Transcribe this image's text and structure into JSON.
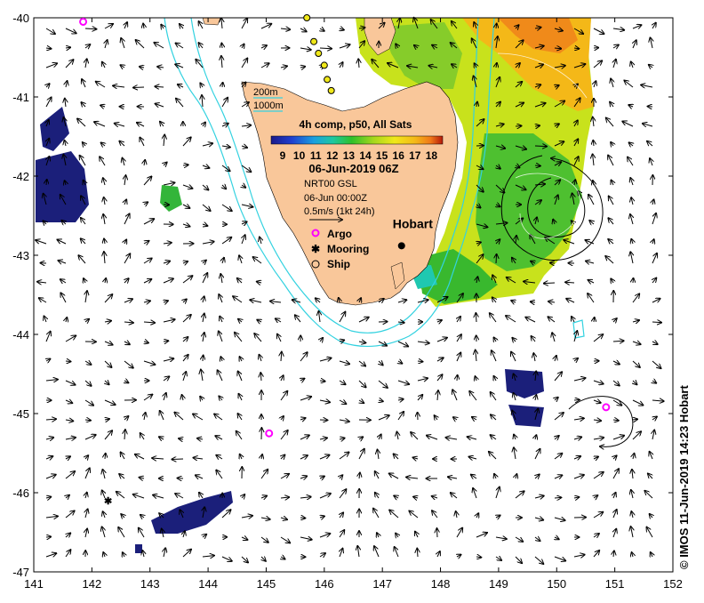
{
  "map": {
    "region": "Tasmania",
    "lon_range": [
      141,
      152
    ],
    "lat_range": [
      -47,
      -40
    ],
    "x_ticks": [
      "141",
      "142",
      "143",
      "144",
      "145",
      "146",
      "147",
      "148",
      "149",
      "150",
      "151",
      "152"
    ],
    "y_ticks": [
      "-40",
      "-41",
      "-42",
      "-43",
      "-44",
      "-45",
      "-46",
      "-47"
    ],
    "colors": {
      "land": "#f9c79a",
      "isobath": "#34d2e0",
      "sst_warm": "#f4a41a",
      "sst_cool": "#1b1f7a",
      "argo": "#ff00ff"
    }
  },
  "legend": {
    "isobath_200": "200m",
    "isobath_1000": "1000m",
    "composite_title": "4h comp, p50, All Sats",
    "colorbar_ticks": [
      "9",
      "10",
      "11",
      "12",
      "13",
      "14",
      "15",
      "16",
      "17",
      "18"
    ],
    "colorbar_colors": [
      "#1a1a8a",
      "#1f3fd0",
      "#1aa0e0",
      "#1ec8a0",
      "#2fc02a",
      "#a8d81c",
      "#f0e81a",
      "#f4b818",
      "#f07818",
      "#b41a0a"
    ],
    "date": "06-Jun-2019 06Z",
    "current_source": "NRT00 GSL",
    "current_time": "06-Jun 00:00Z",
    "vector_scale": "0.5m/s (1kt 24h)",
    "argo_label": "Argo",
    "mooring_label": "Mooring",
    "ship_label": "Ship",
    "city_label": "Hobart"
  },
  "credit": "© IMOS 11-Jun-2019 14:23 Hobart",
  "argo_floats": [
    {
      "lon": 141.85,
      "lat": -40.05
    },
    {
      "lon": 145.05,
      "lat": -45.25
    },
    {
      "lon": 150.85,
      "lat": -44.92
    }
  ],
  "mooring": {
    "lon": 142.28,
    "lat": -46.1
  },
  "ship_track": [
    {
      "lon": 145.7,
      "lat": -40.0
    },
    {
      "lon": 145.82,
      "lat": -40.3
    },
    {
      "lon": 145.9,
      "lat": -40.45
    },
    {
      "lon": 146.0,
      "lat": -40.6
    },
    {
      "lon": 146.05,
      "lat": -40.78
    },
    {
      "lon": 146.12,
      "lat": -40.92
    }
  ],
  "city": {
    "lon": 147.33,
    "lat": -42.88
  }
}
